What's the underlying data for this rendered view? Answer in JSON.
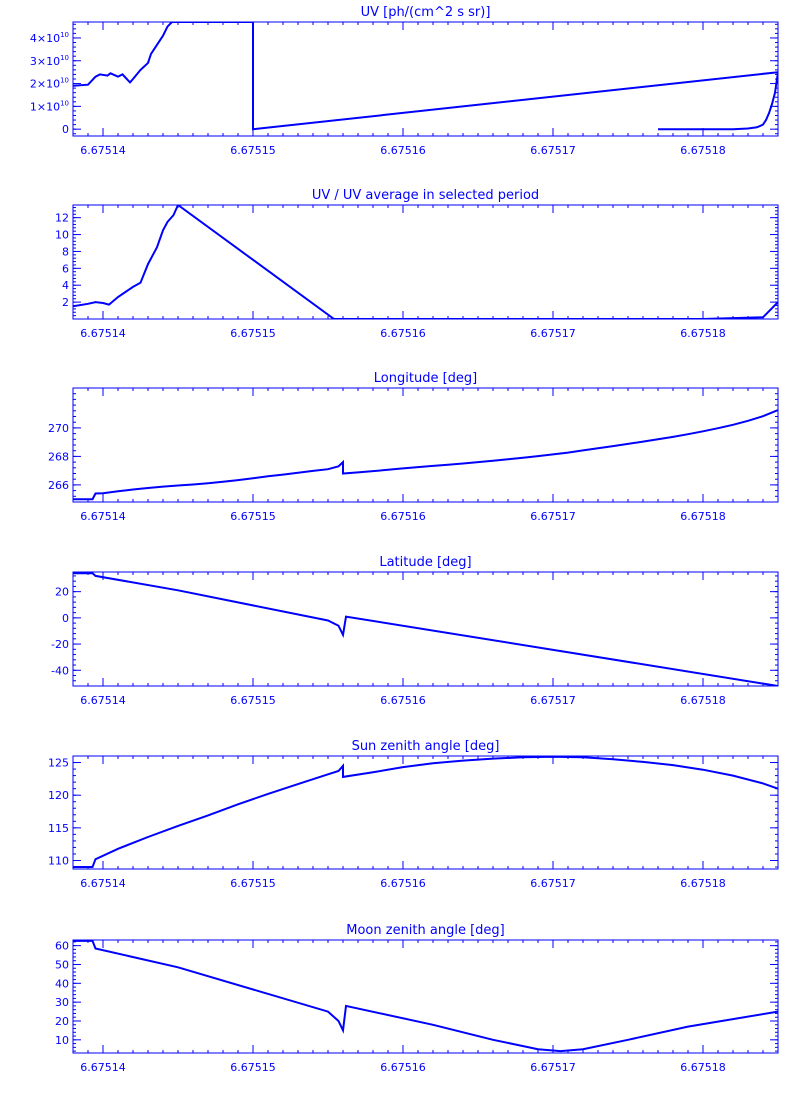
{
  "x_ticks": [
    "6.67514",
    "6.67515",
    "6.67516",
    "6.67517",
    "6.67518"
  ],
  "x_tick_values": [
    6.67514,
    6.67515,
    6.67516,
    6.67517,
    6.67518
  ],
  "x_range": [
    6.675138,
    6.675185
  ],
  "color": "#0000ff",
  "chart_data": [
    {
      "type": "line",
      "title": "UV [ph/(cm^2 s sr)]",
      "xlabel": "",
      "ylabel": "",
      "ylim": [
        -3000000000.0,
        47000000000.0
      ],
      "y_ticks": [
        0,
        10000000000.0,
        20000000000.0,
        30000000000.0,
        40000000000.0
      ],
      "y_tick_labels": [
        {
          "base": "0",
          "exp": ""
        },
        {
          "base": "1×10",
          "exp": "10"
        },
        {
          "base": "2×10",
          "exp": "10"
        },
        {
          "base": "3×10",
          "exp": "10"
        },
        {
          "base": "4×10",
          "exp": "10"
        }
      ],
      "series": [
        {
          "x": [
            6.675138,
            6.675139,
            6.6751395,
            6.6751398,
            6.6751403,
            6.6751405,
            6.675141,
            6.6751413,
            6.6751418,
            6.675142,
            6.6751425,
            6.675143,
            6.6751432,
            6.6751436,
            6.675144,
            6.6751443,
            6.6751446,
            6.675145,
            6.67515,
            6.67515,
            6.675185,
            6.6751848,
            6.6751846,
            6.6751844,
            6.6751842,
            6.675184,
            6.6751836,
            6.675183,
            6.675182,
            6.67518,
            6.675179,
            6.675178,
            6.675177
          ],
          "y": [
            19000000000.0,
            19500000000.0,
            23000000000.0,
            24000000000.0,
            23500000000.0,
            24500000000.0,
            23000000000.0,
            24000000000.0,
            20500000000.0,
            22000000000.0,
            26000000000.0,
            29000000000.0,
            33000000000.0,
            37000000000.0,
            41000000000.0,
            45000000000.0,
            47000000000.0,
            47000000000.0,
            47000000000.0,
            0,
            25000000000.0,
            16000000000.0,
            11000000000.0,
            7000000000.0,
            4000000000.0,
            2000000000.0,
            800000000.0,
            300000000.0,
            0,
            0,
            0,
            0,
            0
          ]
        }
      ]
    },
    {
      "type": "line",
      "title": "UV / UV average in selected period",
      "xlabel": "",
      "ylabel": "",
      "ylim": [
        0,
        13.5
      ],
      "y_ticks": [
        2,
        4,
        6,
        8,
        10,
        12
      ],
      "y_tick_labels": [
        "2",
        "4",
        "6",
        "8",
        "10",
        "12"
      ],
      "series": [
        {
          "x": [
            6.675138,
            6.675139,
            6.6751395,
            6.67514,
            6.6751404,
            6.675141,
            6.675142,
            6.6751425,
            6.675143,
            6.6751436,
            6.675144,
            6.6751443,
            6.6751447,
            6.675145,
            6.6751554,
            6.67518,
            6.675184,
            6.675185
          ],
          "y": [
            1.5,
            1.8,
            2.0,
            1.9,
            1.7,
            2.6,
            3.8,
            4.3,
            6.5,
            8.5,
            10.5,
            11.5,
            12.3,
            13.5,
            0,
            0,
            0.2,
            2.0
          ]
        }
      ]
    },
    {
      "type": "line",
      "title": "Longitude [deg]",
      "xlabel": "",
      "ylabel": "",
      "ylim": [
        264.8,
        272.8
      ],
      "y_ticks": [
        266,
        268,
        270
      ],
      "y_tick_labels": [
        "266",
        "268",
        "270"
      ],
      "series": [
        {
          "x": [
            6.675138,
            6.6751393,
            6.6751395,
            6.67514,
            6.675141,
            6.675142,
            6.675143,
            6.675144,
            6.675145,
            6.675146,
            6.675147,
            6.675148,
            6.675149,
            6.67515,
            6.675151,
            6.675152,
            6.675153,
            6.675154,
            6.675155,
            6.6751557,
            6.675156,
            6.675156,
            6.675157,
            6.675158,
            6.675159,
            6.67516,
            6.675161,
            6.675162,
            6.675163,
            6.675164,
            6.675165,
            6.675166,
            6.675167,
            6.675168,
            6.675169,
            6.67517,
            6.675171,
            6.675172,
            6.675173,
            6.675174,
            6.675175,
            6.675176,
            6.675177,
            6.675178,
            6.675179,
            6.67518,
            6.675181,
            6.675182,
            6.675183,
            6.675184,
            6.675185
          ],
          "y": [
            265.0,
            265.0,
            265.4,
            265.42,
            265.55,
            265.68,
            265.78,
            265.88,
            265.96,
            266.03,
            266.12,
            266.22,
            266.34,
            266.47,
            266.6,
            266.72,
            266.85,
            266.98,
            267.1,
            267.3,
            267.6,
            266.8,
            266.88,
            266.97,
            267.06,
            267.16,
            267.25,
            267.33,
            267.42,
            267.5,
            267.6,
            267.7,
            267.8,
            267.91,
            268.02,
            268.14,
            268.27,
            268.42,
            268.57,
            268.72,
            268.88,
            269.04,
            269.2,
            269.37,
            269.56,
            269.76,
            269.98,
            270.22,
            270.5,
            270.82,
            271.25
          ]
        }
      ]
    },
    {
      "type": "line",
      "title": "Latitude [deg]",
      "xlabel": "",
      "ylabel": "",
      "ylim": [
        -52,
        35
      ],
      "y_ticks": [
        -40,
        -20,
        0,
        20
      ],
      "y_tick_labels": [
        "-40",
        "-20",
        "0",
        "20"
      ],
      "series": [
        {
          "x": [
            6.675138,
            6.6751393,
            6.6751395,
            6.675145,
            6.675155,
            6.6751557,
            6.675156,
            6.6751562,
            6.675185
          ],
          "y": [
            34,
            34,
            32,
            21,
            -2,
            -6,
            -13,
            1,
            -52
          ]
        }
      ]
    },
    {
      "type": "line",
      "title": "Sun zenith angle [deg]",
      "xlabel": "",
      "ylabel": "",
      "ylim": [
        108.7,
        126
      ],
      "y_ticks": [
        110,
        115,
        120,
        125
      ],
      "y_tick_labels": [
        "110",
        "115",
        "120",
        "125"
      ],
      "series": [
        {
          "x": [
            6.675138,
            6.6751393,
            6.6751395,
            6.675141,
            6.675143,
            6.675145,
            6.675147,
            6.675149,
            6.675151,
            6.675153,
            6.675155,
            6.6751557,
            6.675156,
            6.675156,
            6.675158,
            6.67516,
            6.675162,
            6.675164,
            6.675166,
            6.675168,
            6.67517,
            6.675172,
            6.675174,
            6.675176,
            6.675178,
            6.67518,
            6.675182,
            6.675184,
            6.675185
          ],
          "y": [
            109.0,
            109.0,
            110.2,
            111.8,
            113.6,
            115.3,
            116.9,
            118.6,
            120.2,
            121.7,
            123.2,
            123.7,
            124.5,
            122.8,
            123.5,
            124.3,
            124.9,
            125.3,
            125.6,
            125.8,
            125.9,
            125.8,
            125.5,
            125.1,
            124.6,
            123.9,
            123.0,
            121.8,
            121.0
          ]
        }
      ]
    },
    {
      "type": "line",
      "title": "Moon zenith angle [deg]",
      "xlabel": "",
      "ylabel": "",
      "ylim": [
        3,
        63
      ],
      "y_ticks": [
        10,
        20,
        30,
        40,
        50,
        60
      ],
      "y_tick_labels": [
        "10",
        "20",
        "30",
        "40",
        "50",
        "60"
      ],
      "series": [
        {
          "x": [
            6.675138,
            6.6751393,
            6.6751395,
            6.675145,
            6.675155,
            6.6751557,
            6.675156,
            6.6751562,
            6.675162,
            6.675166,
            6.675169,
            6.6751705,
            6.675172,
            6.675175,
            6.675179,
            6.675185
          ],
          "y": [
            62.5,
            62.5,
            58.5,
            48.5,
            25,
            20,
            15,
            28,
            18,
            10,
            5,
            4,
            5,
            10,
            17,
            25
          ]
        }
      ]
    }
  ]
}
